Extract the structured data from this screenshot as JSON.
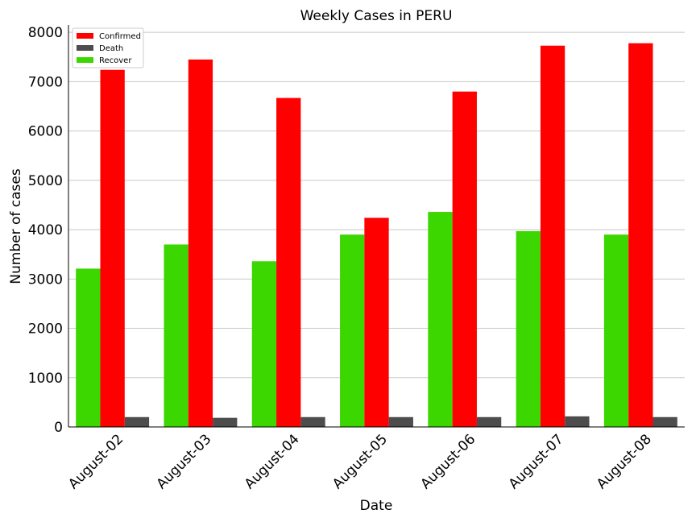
{
  "chart_data": {
    "type": "bar",
    "title": "Weekly Cases in PERU",
    "xlabel": "Date",
    "ylabel": "Number of cases",
    "categories": [
      "August-02",
      "August-03",
      "August-04",
      "August-05",
      "August-06",
      "August-07",
      "August-08"
    ],
    "series": [
      {
        "name": "Recover",
        "color": "#3cd600",
        "values": [
          3210,
          3700,
          3360,
          3900,
          4360,
          3970,
          3900
        ]
      },
      {
        "name": "Confirmed",
        "color": "#ff0000",
        "values": [
          7240,
          7450,
          6670,
          4240,
          6800,
          7730,
          7780
        ]
      },
      {
        "name": "Death",
        "color": "#4d4d4d",
        "values": [
          200,
          185,
          200,
          200,
          200,
          215,
          200
        ]
      }
    ],
    "legend_order": [
      "Confirmed",
      "Death",
      "Recover"
    ],
    "yticks": [
      0,
      1000,
      2000,
      3000,
      4000,
      5000,
      6000,
      7000,
      8000
    ],
    "ylim": [
      0,
      8150
    ],
    "grid": "horizontal",
    "legend_position": "top-left"
  }
}
